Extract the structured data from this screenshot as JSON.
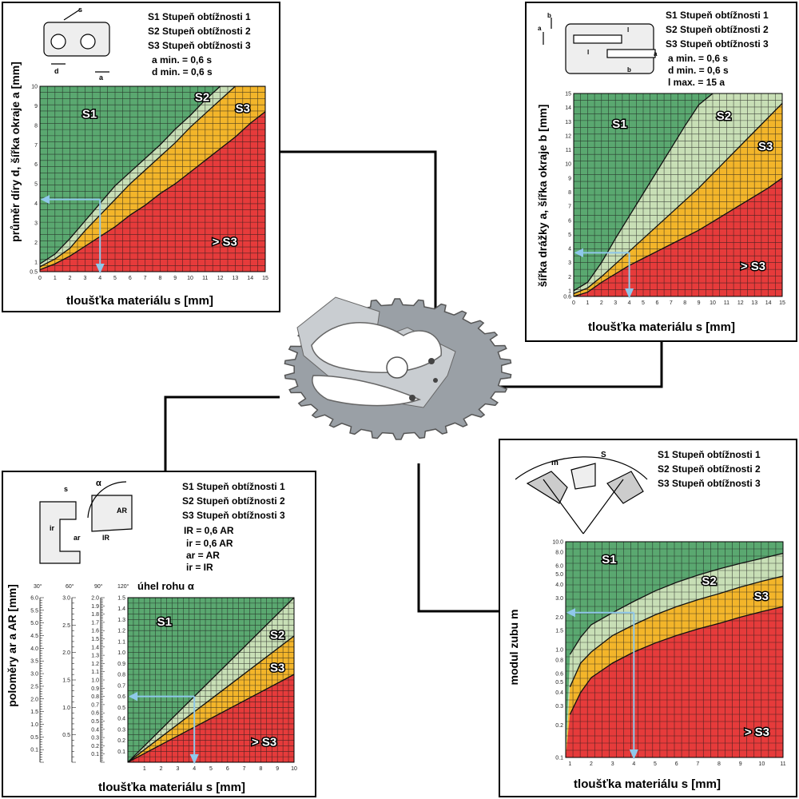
{
  "colors": {
    "s1": "#5aa870",
    "s2": "#c8dfb6",
    "s3": "#f3b52a",
    "beyond": "#e63b3b",
    "arrow": "#8fc8ea",
    "grid": "#1a1a1a"
  },
  "legend": {
    "s1": "S1 Stupeň obtížnosti 1",
    "s2": "S2 Stupeň obtížnosti 2",
    "s3": "S3 Stupeň obtížnosti 3"
  },
  "zones": {
    "s1": "S1",
    "s2": "S2",
    "s3": "S3",
    "beyond": "> S3"
  },
  "notes": {
    "holes": [
      "a min. = 0,6 s",
      "d min. = 0,6 s"
    ],
    "slots": [
      "a min. = 0,6 s",
      "d min. = 0,6 s",
      "l max. = 15 a"
    ],
    "radii": [
      "IR = 0,6 AR",
      "ir = 0,6 AR",
      "ar = AR",
      "ir = IR"
    ]
  },
  "sketch_labels": {
    "holes": [
      "s",
      "d",
      "a"
    ],
    "slots": [
      "b",
      "a",
      "l",
      "l",
      "a",
      "b"
    ],
    "radii": [
      "s",
      "α",
      "AR",
      "ir",
      "ar",
      "IR"
    ],
    "gear": [
      "m",
      "S"
    ]
  },
  "chart_data": [
    {
      "type": "area",
      "xlabel": "tloušťka materiálu s [mm]",
      "ylabel": "průměr díry d, šířka okraje a [mm]",
      "x_ticks": [
        "0",
        "1",
        "2",
        "3",
        "4",
        "5",
        "6",
        "7",
        "8",
        "9",
        "10",
        "11",
        "12",
        "13",
        "14",
        "15"
      ],
      "y_ticks": [
        "0.5",
        "1",
        "2",
        "3",
        "4",
        "5",
        "6",
        "7",
        "8",
        "9",
        "10"
      ],
      "xlim": [
        0,
        15
      ],
      "ylim": [
        0.5,
        10
      ],
      "series": [
        {
          "name": "S1",
          "x": [
            0,
            1,
            2,
            3,
            4,
            5,
            6,
            7,
            8,
            9,
            10,
            11,
            12,
            13
          ],
          "y": [
            0.9,
            1.4,
            2.2,
            3.1,
            4.0,
            4.9,
            5.6,
            6.3,
            7.0,
            7.8,
            8.5,
            9.3,
            10,
            10
          ]
        },
        {
          "name": "S2",
          "x": [
            0,
            1,
            2,
            3,
            4,
            5,
            6,
            7,
            8,
            9,
            10,
            11,
            12,
            13,
            14,
            15
          ],
          "y": [
            0.75,
            1.15,
            1.7,
            2.6,
            3.4,
            4.2,
            5.0,
            5.7,
            6.4,
            7.1,
            7.9,
            8.6,
            9.3,
            10,
            10,
            10
          ]
        },
        {
          "name": "S3",
          "x": [
            0,
            1,
            2,
            3,
            4,
            5,
            6,
            7,
            8,
            9,
            10,
            11,
            12,
            13,
            14,
            15
          ],
          "y": [
            0.6,
            0.9,
            1.3,
            1.8,
            2.3,
            2.8,
            3.4,
            3.9,
            4.5,
            5.0,
            5.6,
            6.2,
            6.8,
            7.4,
            8.1,
            8.7
          ]
        }
      ],
      "example": {
        "x": 4,
        "y": 4.2
      }
    },
    {
      "type": "area",
      "xlabel": "tloušťka materiálu s [mm]",
      "ylabel": "šířka drážky a, šířka okraje b [mm]",
      "x_ticks": [
        "0",
        "1",
        "2",
        "3",
        "4",
        "5",
        "6",
        "7",
        "8",
        "9",
        "10",
        "11",
        "12",
        "13",
        "14",
        "15"
      ],
      "y_ticks": [
        "0.6",
        "1",
        "2",
        "3",
        "4",
        "5",
        "6",
        "7",
        "8",
        "9",
        "10",
        "11",
        "12",
        "13",
        "14",
        "15"
      ],
      "xlim": [
        0,
        15
      ],
      "ylim": [
        0.6,
        15
      ],
      "series": [
        {
          "name": "S1",
          "x": [
            0,
            1,
            2,
            3,
            4,
            5,
            6,
            7,
            8,
            9,
            10
          ],
          "y": [
            1.0,
            1.6,
            3.0,
            4.7,
            6.3,
            7.9,
            9.5,
            11.1,
            12.7,
            14.2,
            15
          ]
        },
        {
          "name": "S2",
          "x": [
            0,
            1,
            2,
            3,
            4,
            5,
            6,
            7,
            8,
            9,
            10,
            11,
            12,
            13,
            14,
            15
          ],
          "y": [
            0.8,
            1.2,
            2.0,
            2.9,
            3.8,
            4.7,
            5.6,
            6.5,
            7.4,
            8.3,
            9.3,
            10.3,
            11.3,
            12.3,
            13.3,
            14.3
          ]
        },
        {
          "name": "S3",
          "x": [
            0,
            1,
            2,
            3,
            4,
            5,
            6,
            7,
            8,
            9,
            10,
            11,
            12,
            13,
            14,
            15
          ],
          "y": [
            0.6,
            0.9,
            1.6,
            2.2,
            2.8,
            3.3,
            3.8,
            4.3,
            4.8,
            5.3,
            5.9,
            6.5,
            7.1,
            7.7,
            8.3,
            9.0
          ]
        }
      ],
      "example": {
        "x": 4,
        "y": 3.7
      }
    },
    {
      "type": "area",
      "title": "úhel rohu α",
      "xlabel": "tloušťka materiálu s [mm]",
      "ylabel": "poloměry ar a AR [mm]",
      "x_ticks": [
        "1",
        "2",
        "3",
        "4",
        "5",
        "6",
        "7",
        "8",
        "9",
        "10"
      ],
      "y_ticks": [
        "0.1",
        "0.2",
        "0.3",
        "0.4",
        "0.5",
        "0.6",
        "0.7",
        "0.8",
        "0.9",
        "1.0",
        "1.1",
        "1.2",
        "1.3",
        "1.4",
        "1.5"
      ],
      "xlim": [
        0,
        10
      ],
      "ylim": [
        0,
        1.5
      ],
      "angle_scales": [
        {
          "label": "30°",
          "ticks": [
            "0.1",
            "0.5",
            "1.0",
            "1.5",
            "2.0",
            "2.5",
            "3.0",
            "3.5",
            "4.0",
            "4.5",
            "5.0",
            "5.5",
            "6.0"
          ]
        },
        {
          "label": "60°",
          "ticks": [
            "0.5",
            "1.0",
            "1.5",
            "2.0",
            "2.5",
            "3.0"
          ]
        },
        {
          "label": "90°",
          "ticks": [
            "0.1",
            "0.2",
            "0.3",
            "0.4",
            "0.5",
            "0.6",
            "0.7",
            "0.8",
            "0.9",
            "1.0",
            "1.1",
            "1.2",
            "1.3",
            "1.4",
            "1.5",
            "1.6",
            "1.7",
            "1.8",
            "1.9",
            "2.0"
          ]
        },
        {
          "label": "120°",
          "ticks": []
        }
      ],
      "series": [
        {
          "name": "S1",
          "x": [
            0,
            10
          ],
          "y": [
            0,
            1.5
          ]
        },
        {
          "name": "S2",
          "x": [
            0,
            10
          ],
          "y": [
            0,
            1.15
          ]
        },
        {
          "name": "S3",
          "x": [
            0,
            10
          ],
          "y": [
            0,
            0.8
          ]
        }
      ],
      "example": {
        "x": 4,
        "y": 0.6
      }
    },
    {
      "type": "area",
      "xlabel": "tloušťka materiálu s [mm]",
      "ylabel": "modul zubu m",
      "log_y": true,
      "x_ticks": [
        "1",
        "2",
        "3",
        "4",
        "5",
        "6",
        "7",
        "8",
        "9",
        "10",
        "11"
      ],
      "y_ticks": [
        "0.1",
        "0.2",
        "0.3",
        "0.4",
        "0.5",
        "0.6",
        "0.8",
        "1.0",
        "1.5",
        "2.0",
        "3.0",
        "4.0",
        "5.0",
        "6.0",
        "8.0",
        "10.0"
      ],
      "xlim": [
        0.8,
        11
      ],
      "ylim": [
        0.1,
        10
      ],
      "series": [
        {
          "name": "S1",
          "x": [
            1,
            1.5,
            2,
            3,
            4,
            5,
            6,
            7,
            8,
            9,
            10,
            11
          ],
          "y": [
            0.9,
            1.3,
            1.7,
            2.2,
            2.8,
            3.5,
            4.2,
            4.9,
            5.6,
            6.3,
            7.0,
            7.8
          ]
        },
        {
          "name": "S2",
          "x": [
            1,
            1.5,
            2,
            3,
            4,
            5,
            6,
            7,
            8,
            9,
            10,
            11
          ],
          "y": [
            0.45,
            0.75,
            0.95,
            1.35,
            1.7,
            2.1,
            2.5,
            2.9,
            3.3,
            3.8,
            4.3,
            4.8
          ]
        },
        {
          "name": "S3",
          "x": [
            1,
            1.5,
            2,
            3,
            4,
            5,
            6,
            7,
            8,
            9,
            10,
            11
          ],
          "y": [
            0.25,
            0.4,
            0.55,
            0.75,
            0.95,
            1.15,
            1.35,
            1.55,
            1.75,
            2.0,
            2.25,
            2.5
          ]
        }
      ],
      "example": {
        "x": 4,
        "y": 2.2
      }
    }
  ]
}
